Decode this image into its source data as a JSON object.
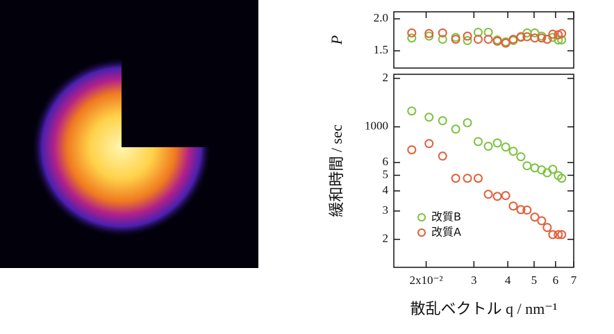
{
  "chart_data": [
    {
      "type": "scatter",
      "ylabel": "P",
      "x": [
        0.0177,
        0.0205,
        0.023,
        0.0257,
        0.0284,
        0.0311,
        0.0339,
        0.0366,
        0.0393,
        0.0419,
        0.0447,
        0.0471,
        0.0503,
        0.0533,
        0.0559,
        0.0586,
        0.0614,
        0.0632
      ],
      "xlim": [
        0.0152,
        0.07
      ],
      "xscale": "log",
      "ylim": [
        1.23,
        2.11
      ],
      "yscale": "linear",
      "yticks": [
        1.5,
        {
          "value": 2,
          "label": "2.0"
        }
      ],
      "series": [
        {
          "color": "#7dc242",
          "values": [
            1.7,
            1.73,
            1.68,
            1.71,
            1.66,
            1.79,
            1.79,
            1.67,
            1.64,
            1.66,
            1.71,
            1.78,
            1.78,
            1.73,
            1.68,
            1.71,
            1.67,
            1.67
          ]
        },
        {
          "color": "#e0603a",
          "values": [
            1.78,
            1.77,
            1.78,
            1.68,
            1.73,
            1.68,
            1.68,
            1.65,
            1.62,
            1.68,
            1.72,
            1.72,
            1.7,
            1.7,
            1.68,
            1.76,
            1.75,
            1.77
          ]
        }
      ]
    },
    {
      "type": "scatter",
      "ylabel": "緩和時間 / sec",
      "xlabel": "散乱ベクトル q / nm⁻¹",
      "x": [
        0.0177,
        0.0205,
        0.023,
        0.0257,
        0.0284,
        0.0311,
        0.0339,
        0.0366,
        0.0393,
        0.0419,
        0.0447,
        0.0471,
        0.0503,
        0.0533,
        0.0559,
        0.0586,
        0.0614,
        0.0632
      ],
      "xlim": [
        0.0152,
        0.07
      ],
      "xscale": "log",
      "xticks": [
        {
          "value": 0.02,
          "label": "2x10⁻²"
        },
        {
          "value": 0.03,
          "label": "3"
        },
        {
          "value": 0.04,
          "label": "4"
        },
        {
          "value": 0.05,
          "label": "5"
        },
        {
          "value": 0.06,
          "label": "6"
        },
        {
          "value": 0.07,
          "label": "7"
        }
      ],
      "ylim": [
        134,
        2120
      ],
      "yscale": "log",
      "yticks": [
        {
          "value": 200,
          "label": "2"
        },
        {
          "value": 300,
          "label": "3"
        },
        {
          "value": 400,
          "label": "4"
        },
        {
          "value": 500,
          "label": "5"
        },
        {
          "value": 600,
          "label": "6"
        },
        1000,
        {
          "value": 2000,
          "label": "2"
        }
      ],
      "legend": "lower left",
      "series": [
        {
          "name": "改質B",
          "color": "#7dc242",
          "values": [
            1254,
            1148,
            1092,
            968,
            1060,
            810,
            757,
            794,
            749,
            705,
            652,
            573,
            556,
            540,
            518,
            545,
            498,
            479
          ]
        },
        {
          "name": "改質A",
          "color": "#e0603a",
          "values": [
            720,
            787,
            658,
            479,
            479,
            479,
            381,
            370,
            374,
            322,
            306,
            304,
            275,
            261,
            237,
            214,
            214,
            214
          ]
        }
      ]
    }
  ]
}
